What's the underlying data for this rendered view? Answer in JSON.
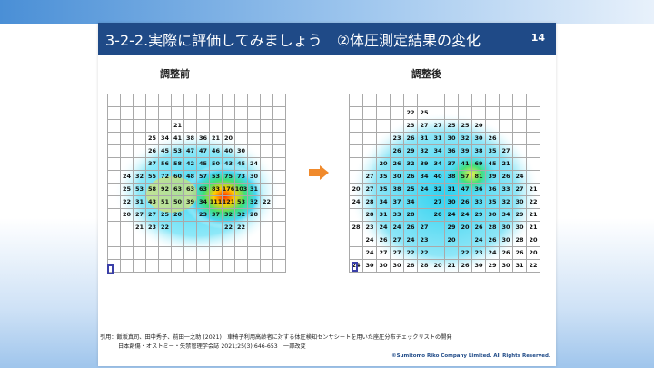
{
  "slide": {
    "title": "3-2-2.実際に評価してみましょう　②体圧測定結果の変化",
    "page_number": "14",
    "before_label": "調整前",
    "after_label": "調整後",
    "citation_line1": "引用：飯坂真司、田中秀子、前田一之助 (2021)　車椅子利用高齢者に対する体圧検知センサシートを用いた座圧分布チェックリストの開発",
    "citation_line2": "日本創傷・オストミー・失禁管理学会誌 2021;25(3):646-653　一部改変",
    "copyright": "©Sumitomo Riko Company Limited. All Rights Reserved.",
    "arrow_color": "#f08a2c",
    "title_bar_color": "#1f4a87"
  },
  "before_grid": [
    [
      "",
      "",
      "",
      "",
      "",
      "",
      "",
      "",
      "",
      "",
      "",
      "",
      "",
      ""
    ],
    [
      "",
      "",
      "",
      "",
      "",
      "",
      "",
      "",
      "",
      "",
      "",
      "",
      "",
      ""
    ],
    [
      "",
      "",
      "",
      "",
      "",
      "21",
      "",
      "",
      "",
      "",
      "",
      "",
      "",
      ""
    ],
    [
      "",
      "",
      "",
      "25",
      "34",
      "41",
      "38",
      "36",
      "21",
      "20",
      "",
      "",
      "",
      ""
    ],
    [
      "",
      "",
      "",
      "26",
      "45",
      "53",
      "47",
      "47",
      "46",
      "40",
      "30",
      "",
      "",
      ""
    ],
    [
      "",
      "",
      "",
      "37",
      "56",
      "58",
      "42",
      "45",
      "50",
      "43",
      "45",
      "24",
      "",
      ""
    ],
    [
      "",
      "24",
      "32",
      "55",
      "72",
      "60",
      "48",
      "57",
      "53",
      "75",
      "73",
      "30",
      "",
      ""
    ],
    [
      "",
      "25",
      "53",
      "58",
      "92",
      "63",
      "63",
      "63",
      "83",
      "176",
      "103",
      "31",
      "",
      ""
    ],
    [
      "",
      "22",
      "31",
      "43",
      "51",
      "50",
      "39",
      "34",
      "111",
      "121",
      "53",
      "32",
      "22",
      ""
    ],
    [
      "",
      "20",
      "27",
      "27",
      "25",
      "20",
      "",
      "23",
      "37",
      "32",
      "32",
      "28",
      "",
      ""
    ],
    [
      "",
      "",
      "21",
      "23",
      "22",
      "",
      "",
      "",
      "",
      "22",
      "22",
      "",
      "",
      ""
    ],
    [
      "",
      "",
      "",
      "",
      "",
      "",
      "",
      "",
      "",
      "",
      "",
      "",
      "",
      ""
    ],
    [
      "",
      "",
      "",
      "",
      "",
      "",
      "",
      "",
      "",
      "",
      "",
      "",
      "",
      ""
    ],
    [
      "",
      "",
      "",
      "",
      "",
      "",
      "",
      "",
      "",
      "",
      "",
      "",
      "",
      ""
    ]
  ],
  "after_grid": [
    [
      "",
      "",
      "",
      "",
      "",
      "",
      "",
      "",
      "",
      "",
      "",
      "",
      "",
      ""
    ],
    [
      "",
      "",
      "",
      "",
      "22",
      "25",
      "",
      "",
      "",
      "",
      "",
      "",
      "",
      ""
    ],
    [
      "",
      "",
      "",
      "",
      "23",
      "27",
      "27",
      "25",
      "25",
      "20",
      "",
      "",
      "",
      ""
    ],
    [
      "",
      "",
      "",
      "23",
      "26",
      "31",
      "31",
      "30",
      "32",
      "30",
      "26",
      "",
      "",
      ""
    ],
    [
      "",
      "",
      "",
      "26",
      "29",
      "32",
      "34",
      "36",
      "39",
      "38",
      "35",
      "27",
      "",
      ""
    ],
    [
      "",
      "",
      "20",
      "26",
      "32",
      "39",
      "34",
      "37",
      "41",
      "69",
      "45",
      "21",
      "",
      ""
    ],
    [
      "",
      "27",
      "35",
      "30",
      "26",
      "34",
      "40",
      "38",
      "57",
      "81",
      "39",
      "26",
      "24",
      ""
    ],
    [
      "20",
      "27",
      "35",
      "38",
      "25",
      "24",
      "32",
      "31",
      "47",
      "36",
      "36",
      "33",
      "27",
      "21"
    ],
    [
      "24",
      "28",
      "34",
      "37",
      "34",
      "",
      "27",
      "30",
      "26",
      "33",
      "35",
      "32",
      "30",
      "22"
    ],
    [
      "",
      "28",
      "31",
      "33",
      "28",
      "",
      "20",
      "24",
      "24",
      "29",
      "30",
      "34",
      "29",
      "21"
    ],
    [
      "28",
      "23",
      "24",
      "24",
      "26",
      "27",
      "",
      "29",
      "20",
      "26",
      "28",
      "30",
      "30",
      "21"
    ],
    [
      "",
      "24",
      "26",
      "27",
      "24",
      "23",
      "",
      "20",
      "",
      "24",
      "26",
      "30",
      "28",
      "20"
    ],
    [
      "",
      "24",
      "27",
      "27",
      "22",
      "22",
      "",
      "",
      "22",
      "23",
      "24",
      "26",
      "26",
      "20"
    ],
    [
      "24",
      "30",
      "30",
      "30",
      "28",
      "28",
      "20",
      "21",
      "26",
      "30",
      "29",
      "30",
      "31",
      "22"
    ]
  ]
}
